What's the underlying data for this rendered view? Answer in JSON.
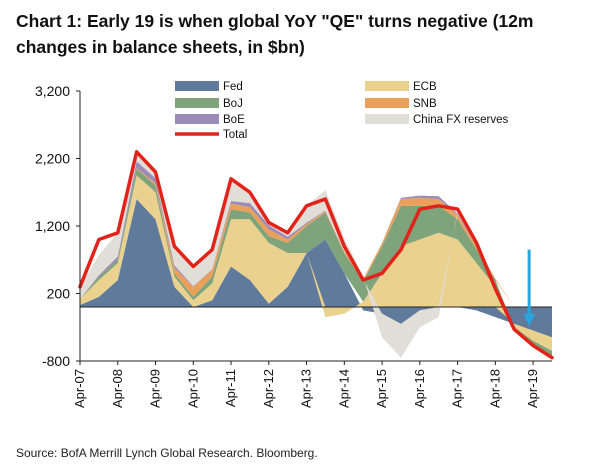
{
  "title": "Chart 1: Early 19 is when global YoY \"QE\" turns negative (12m changes in balance sheets, in $bn)",
  "source": "Source: BofA Merrill Lynch Global Research. Bloomberg.",
  "chart_data": {
    "type": "area",
    "stacked": true,
    "x": [
      "Apr-07",
      "Oct-07",
      "Apr-08",
      "Oct-08",
      "Apr-09",
      "Oct-09",
      "Apr-10",
      "Oct-10",
      "Apr-11",
      "Oct-11",
      "Apr-12",
      "Oct-12",
      "Apr-13",
      "Oct-13",
      "Apr-14",
      "Oct-14",
      "Apr-15",
      "Oct-15",
      "Apr-16",
      "Oct-16",
      "Apr-17",
      "Oct-17",
      "Apr-18",
      "Oct-18",
      "Apr-19",
      "Oct-19"
    ],
    "xticks": [
      "Apr-07",
      "Apr-08",
      "Apr-09",
      "Apr-10",
      "Apr-11",
      "Apr-12",
      "Apr-13",
      "Apr-14",
      "Apr-15",
      "Apr-16",
      "Apr-17",
      "Apr-18",
      "Apr-19"
    ],
    "ylim": [
      -800,
      3200
    ],
    "yticks": [
      "3,200",
      "2,200",
      "1,200",
      "200",
      "-800"
    ],
    "series": [
      {
        "name": "Fed",
        "color": "#5f7a9b",
        "values": [
          30,
          150,
          400,
          1600,
          1300,
          300,
          0,
          100,
          600,
          400,
          50,
          300,
          800,
          1000,
          500,
          -50,
          -100,
          -250,
          -50,
          0,
          0,
          -50,
          -150,
          -250,
          -350,
          -450
        ]
      },
      {
        "name": "ECB",
        "color": "#ead28e",
        "values": [
          90,
          250,
          250,
          350,
          400,
          150,
          100,
          250,
          700,
          900,
          900,
          500,
          0,
          -150,
          -100,
          80,
          500,
          900,
          1000,
          1100,
          1000,
          650,
          300,
          -50,
          -150,
          -200
        ]
      },
      {
        "name": "BoJ",
        "color": "#7fa37a",
        "values": [
          0,
          50,
          50,
          100,
          100,
          50,
          50,
          100,
          150,
          100,
          100,
          150,
          400,
          400,
          300,
          300,
          400,
          600,
          500,
          400,
          300,
          200,
          100,
          -20,
          -50,
          -80
        ]
      },
      {
        "name": "SNB",
        "color": "#eba05a",
        "values": [
          0,
          0,
          0,
          10,
          30,
          80,
          150,
          100,
          80,
          80,
          100,
          50,
          30,
          20,
          20,
          30,
          50,
          100,
          120,
          100,
          60,
          40,
          20,
          0,
          -10,
          -20
        ]
      },
      {
        "name": "BoE",
        "color": "#9b8bb6",
        "values": [
          0,
          20,
          50,
          100,
          80,
          40,
          10,
          10,
          40,
          60,
          60,
          40,
          20,
          10,
          0,
          0,
          0,
          20,
          30,
          40,
          20,
          10,
          0,
          0,
          0,
          0
        ]
      },
      {
        "name": "China FX reserves",
        "color": "#e1ddd7",
        "values": [
          180,
          300,
          350,
          150,
          100,
          300,
          300,
          300,
          350,
          150,
          50,
          40,
          250,
          300,
          200,
          40,
          -350,
          -500,
          -250,
          -150,
          50,
          50,
          0,
          0,
          0,
          0
        ]
      }
    ],
    "total": {
      "name": "Total",
      "color": "#e2231a",
      "values": [
        300,
        1000,
        1100,
        2300,
        2000,
        900,
        600,
        850,
        1900,
        1700,
        1250,
        1100,
        1500,
        1600,
        900,
        400,
        500,
        850,
        1450,
        1500,
        1450,
        950,
        270,
        -330,
        -570,
        -750
      ]
    },
    "annotation": {
      "type": "arrow",
      "color": "#2aa5e0",
      "at_x": "Apr-19"
    },
    "legend": {
      "placement": "top",
      "columns": 2
    },
    "grid": false
  }
}
